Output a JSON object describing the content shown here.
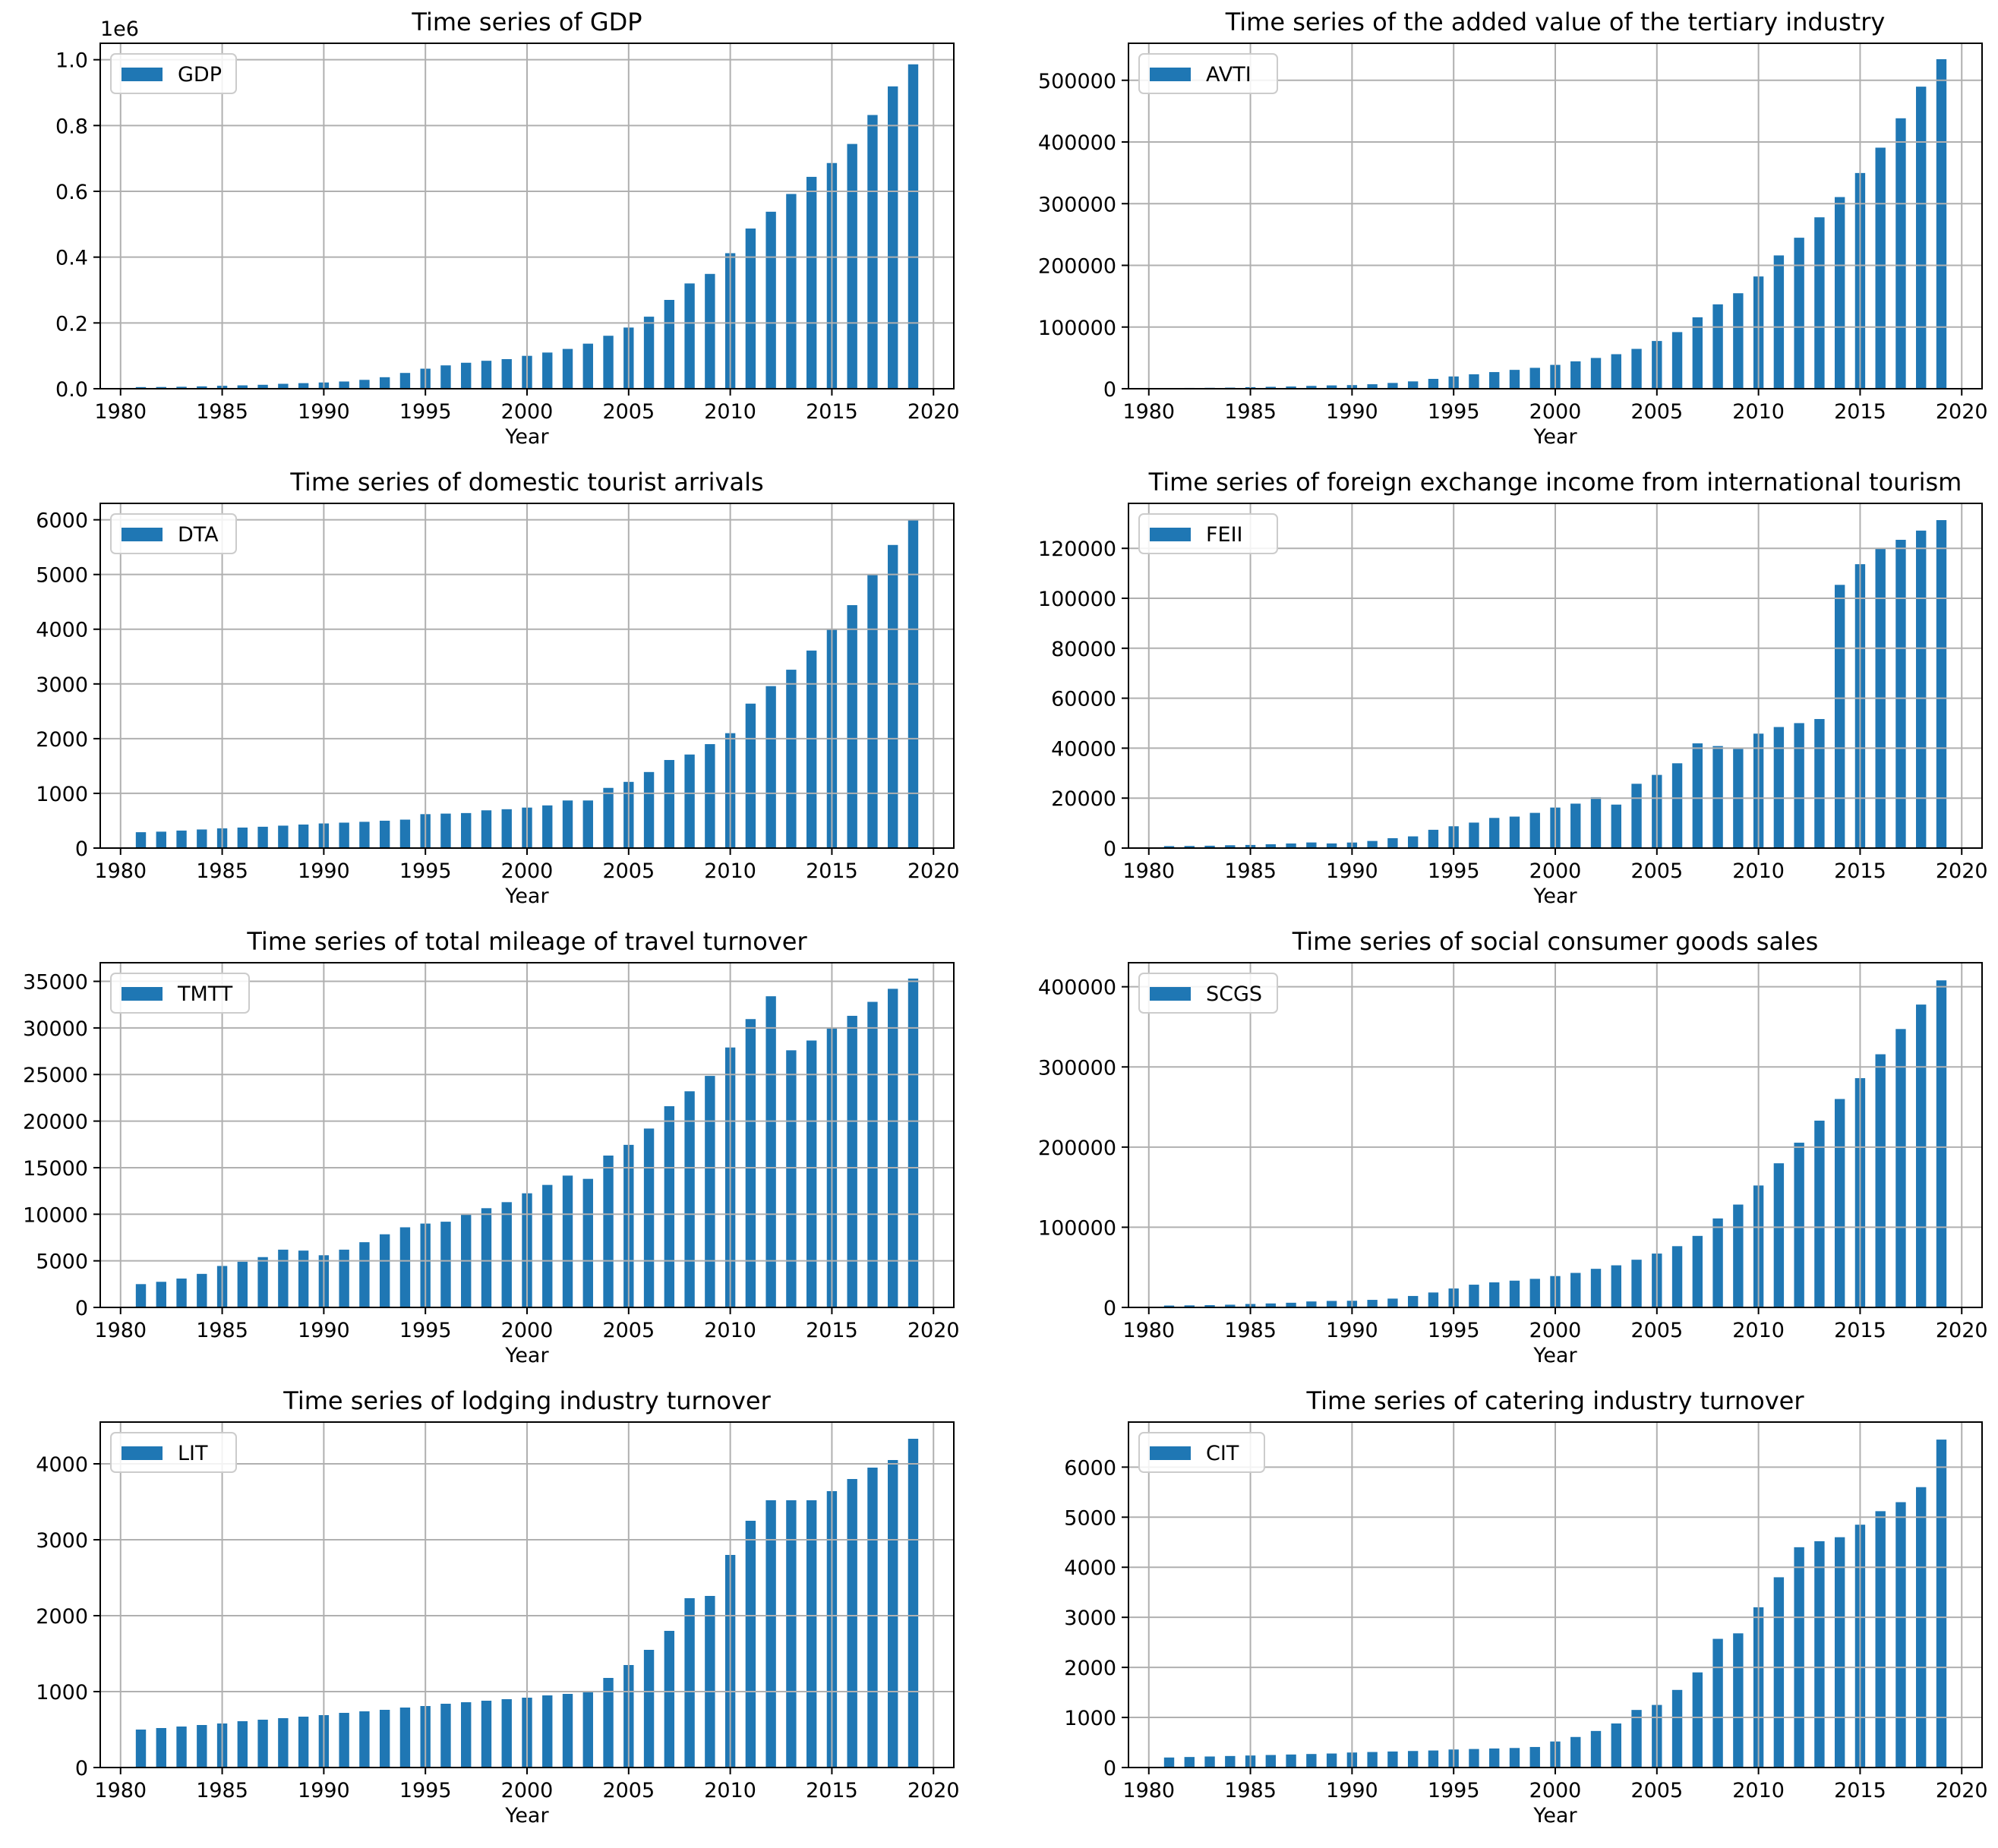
{
  "chart_data": [
    {
      "type": "bar",
      "title": "Time series of GDP",
      "xlabel": "Year",
      "ylabel": "",
      "offset_text": "1e6",
      "legend": {
        "label": "GDP",
        "loc": "upper-left"
      },
      "color": "#1f77b4",
      "grid": true,
      "xlim": [
        1979,
        2021
      ],
      "xticks": [
        1980,
        1985,
        1990,
        1995,
        2000,
        2005,
        2010,
        2015,
        2020
      ],
      "ylim": [
        0,
        1.05
      ],
      "yticks": [
        0.0,
        0.2,
        0.4,
        0.6,
        0.8,
        1.0
      ],
      "ytick_labels": [
        "0.0",
        "0.2",
        "0.4",
        "0.6",
        "0.8",
        "1.0"
      ],
      "x": [
        1981,
        1982,
        1983,
        1984,
        1985,
        1986,
        1987,
        1988,
        1989,
        1990,
        1991,
        1992,
        1993,
        1994,
        1995,
        1996,
        1997,
        1998,
        1999,
        2000,
        2001,
        2002,
        2003,
        2004,
        2005,
        2006,
        2007,
        2008,
        2009,
        2010,
        2011,
        2012,
        2013,
        2014,
        2015,
        2016,
        2017,
        2018,
        2019
      ],
      "values": [
        0.005,
        0.0053,
        0.006,
        0.0072,
        0.009,
        0.0103,
        0.012,
        0.015,
        0.017,
        0.019,
        0.022,
        0.027,
        0.035,
        0.048,
        0.061,
        0.071,
        0.079,
        0.085,
        0.09,
        0.1,
        0.11,
        0.121,
        0.137,
        0.161,
        0.186,
        0.219,
        0.27,
        0.32,
        0.349,
        0.412,
        0.487,
        0.538,
        0.592,
        0.644,
        0.686,
        0.744,
        0.832,
        0.919,
        0.986
      ]
    },
    {
      "type": "bar",
      "title": "Time series of the added value of the tertiary industry",
      "xlabel": "Year",
      "ylabel": "",
      "legend": {
        "label": "AVTI",
        "loc": "upper-left"
      },
      "color": "#1f77b4",
      "grid": true,
      "xlim": [
        1979,
        2021
      ],
      "xticks": [
        1980,
        1985,
        1990,
        1995,
        2000,
        2005,
        2010,
        2015,
        2020
      ],
      "ylim": [
        0,
        560000
      ],
      "yticks": [
        0,
        100000,
        200000,
        300000,
        400000,
        500000
      ],
      "ytick_labels": [
        "0",
        "100000",
        "200000",
        "300000",
        "400000",
        "500000"
      ],
      "x": [
        1981,
        1982,
        1983,
        1984,
        1985,
        1986,
        1987,
        1988,
        1989,
        1990,
        1991,
        1992,
        1993,
        1994,
        1995,
        1996,
        1997,
        1998,
        1999,
        2000,
        2001,
        2002,
        2003,
        2004,
        2005,
        2006,
        2007,
        2008,
        2009,
        2010,
        2011,
        2012,
        2013,
        2014,
        2015,
        2016,
        2017,
        2018,
        2019
      ],
      "values": [
        1100,
        1300,
        1500,
        1800,
        2600,
        3100,
        3600,
        4600,
        5400,
        5900,
        7300,
        9400,
        11900,
        16000,
        19900,
        23400,
        27000,
        30600,
        33900,
        38700,
        44400,
        49900,
        56000,
        64600,
        77400,
        91800,
        115800,
        136800,
        154800,
        182000,
        216100,
        244800,
        277900,
        310700,
        349700,
        390800,
        438400,
        489700,
        534200
      ]
    },
    {
      "type": "bar",
      "title": "Time series of domestic tourist arrivals",
      "xlabel": "Year",
      "ylabel": "",
      "legend": {
        "label": "DTA",
        "loc": "upper-left"
      },
      "color": "#1f77b4",
      "grid": true,
      "xlim": [
        1979,
        2021
      ],
      "xticks": [
        1980,
        1985,
        1990,
        1995,
        2000,
        2005,
        2010,
        2015,
        2020
      ],
      "ylim": [
        0,
        6300
      ],
      "yticks": [
        0,
        1000,
        2000,
        3000,
        4000,
        5000,
        6000
      ],
      "ytick_labels": [
        "0",
        "1000",
        "2000",
        "3000",
        "4000",
        "5000",
        "6000"
      ],
      "x": [
        1981,
        1982,
        1983,
        1984,
        1985,
        1986,
        1987,
        1988,
        1989,
        1990,
        1991,
        1992,
        1993,
        1994,
        1995,
        1996,
        1997,
        1998,
        1999,
        2000,
        2001,
        2002,
        2003,
        2004,
        2005,
        2006,
        2007,
        2008,
        2009,
        2010,
        2011,
        2012,
        2013,
        2014,
        2015,
        2016,
        2017,
        2018,
        2019
      ],
      "values": [
        290,
        300,
        320,
        340,
        360,
        375,
        390,
        410,
        430,
        450,
        465,
        480,
        500,
        520,
        620,
        630,
        640,
        690,
        710,
        740,
        780,
        870,
        870,
        1100,
        1210,
        1390,
        1610,
        1710,
        1900,
        2100,
        2640,
        2960,
        3260,
        3610,
        4000,
        4440,
        5000,
        5540,
        6000
      ]
    },
    {
      "type": "bar",
      "title": "Time series of foreign exchange income from international tourism",
      "xlabel": "Year",
      "ylabel": "",
      "legend": {
        "label": "FEII",
        "loc": "upper-left"
      },
      "color": "#1f77b4",
      "grid": true,
      "xlim": [
        1979,
        2021
      ],
      "xticks": [
        1980,
        1985,
        1990,
        1995,
        2000,
        2005,
        2010,
        2015,
        2020
      ],
      "ylim": [
        0,
        138000
      ],
      "yticks": [
        0,
        20000,
        40000,
        60000,
        80000,
        100000,
        120000
      ],
      "ytick_labels": [
        "0",
        "20000",
        "40000",
        "60000",
        "80000",
        "100000",
        "120000"
      ],
      "x": [
        1981,
        1982,
        1983,
        1984,
        1985,
        1986,
        1987,
        1988,
        1989,
        1990,
        1991,
        1992,
        1993,
        1994,
        1995,
        1996,
        1997,
        1998,
        1999,
        2000,
        2001,
        2002,
        2003,
        2004,
        2005,
        2006,
        2007,
        2008,
        2009,
        2010,
        2011,
        2012,
        2013,
        2014,
        2015,
        2016,
        2017,
        2018,
        2019
      ],
      "values": [
        785,
        843,
        941,
        1131,
        1250,
        1531,
        1845,
        2247,
        1860,
        2218,
        2845,
        3948,
        4683,
        7323,
        8733,
        10200,
        12074,
        12602,
        14099,
        16224,
        17792,
        20385,
        17406,
        25739,
        29296,
        33949,
        41919,
        40843,
        39675,
        45814,
        48464,
        50028,
        51664,
        105380,
        113650,
        120000,
        123417,
        127103,
        131300
      ]
    },
    {
      "type": "bar",
      "title": "Time series of total mileage of travel turnover",
      "xlabel": "Year",
      "ylabel": "",
      "legend": {
        "label": "TMTT",
        "loc": "upper-left"
      },
      "color": "#1f77b4",
      "grid": true,
      "xlim": [
        1979,
        2021
      ],
      "xticks": [
        1980,
        1985,
        1990,
        1995,
        2000,
        2005,
        2010,
        2015,
        2020
      ],
      "ylim": [
        0,
        37000
      ],
      "yticks": [
        0,
        5000,
        10000,
        15000,
        20000,
        25000,
        30000,
        35000
      ],
      "ytick_labels": [
        "0",
        "5000",
        "10000",
        "15000",
        "20000",
        "25000",
        "30000",
        "35000"
      ],
      "x": [
        1981,
        1982,
        1983,
        1984,
        1985,
        1986,
        1987,
        1988,
        1989,
        1990,
        1991,
        1992,
        1993,
        1994,
        1995,
        1996,
        1997,
        1998,
        1999,
        2000,
        2001,
        2002,
        2003,
        2004,
        2005,
        2006,
        2007,
        2008,
        2009,
        2010,
        2011,
        2012,
        2013,
        2014,
        2015,
        2016,
        2017,
        2018,
        2019
      ],
      "values": [
        2500,
        2750,
        3100,
        3600,
        4450,
        4900,
        5400,
        6200,
        6100,
        5600,
        6200,
        7000,
        7850,
        8600,
        9000,
        9200,
        10000,
        10650,
        11300,
        12250,
        13150,
        14150,
        13800,
        16300,
        17450,
        19200,
        21600,
        23200,
        24850,
        27900,
        30950,
        33400,
        27600,
        28650,
        30000,
        31300,
        32800,
        34200,
        35300
      ]
    },
    {
      "type": "bar",
      "title": "Time series of social consumer goods sales",
      "xlabel": "Year",
      "ylabel": "",
      "legend": {
        "label": "SCGS",
        "loc": "upper-left"
      },
      "color": "#1f77b4",
      "grid": true,
      "xlim": [
        1979,
        2021
      ],
      "xticks": [
        1980,
        1985,
        1990,
        1995,
        2000,
        2005,
        2010,
        2015,
        2020
      ],
      "ylim": [
        0,
        430000
      ],
      "yticks": [
        0,
        100000,
        200000,
        300000,
        400000
      ],
      "ytick_labels": [
        "0",
        "100000",
        "200000",
        "300000",
        "400000"
      ],
      "x": [
        1981,
        1982,
        1983,
        1984,
        1985,
        1986,
        1987,
        1988,
        1989,
        1990,
        1991,
        1992,
        1993,
        1994,
        1995,
        1996,
        1997,
        1998,
        1999,
        2000,
        2001,
        2002,
        2003,
        2004,
        2005,
        2006,
        2007,
        2008,
        2009,
        2010,
        2011,
        2012,
        2013,
        2014,
        2015,
        2016,
        2017,
        2018,
        2019
      ],
      "values": [
        2350,
        2570,
        2850,
        3380,
        4300,
        4950,
        5820,
        7440,
        8100,
        8300,
        9420,
        10990,
        14270,
        18620,
        23610,
        28360,
        31250,
        33380,
        35650,
        39110,
        43060,
        48140,
        52520,
        59500,
        67180,
        76410,
        89210,
        111000,
        128300,
        152100,
        179800,
        205500,
        233000,
        260000,
        286000,
        315800,
        347300,
        377800,
        408000
      ]
    },
    {
      "type": "bar",
      "title": "Time series of lodging industry turnover",
      "xlabel": "Year",
      "ylabel": "",
      "legend": {
        "label": "LIT",
        "loc": "upper-left"
      },
      "color": "#1f77b4",
      "grid": true,
      "xlim": [
        1979,
        2021
      ],
      "xticks": [
        1980,
        1985,
        1990,
        1995,
        2000,
        2005,
        2010,
        2015,
        2020
      ],
      "ylim": [
        0,
        4550
      ],
      "yticks": [
        0,
        1000,
        2000,
        3000,
        4000
      ],
      "ytick_labels": [
        "0",
        "1000",
        "2000",
        "3000",
        "4000"
      ],
      "x": [
        1981,
        1982,
        1983,
        1984,
        1985,
        1986,
        1987,
        1988,
        1989,
        1990,
        1991,
        1992,
        1993,
        1994,
        1995,
        1996,
        1997,
        1998,
        1999,
        2000,
        2001,
        2002,
        2003,
        2004,
        2005,
        2006,
        2007,
        2008,
        2009,
        2010,
        2011,
        2012,
        2013,
        2014,
        2015,
        2016,
        2017,
        2018,
        2019
      ],
      "values": [
        500,
        520,
        540,
        560,
        580,
        610,
        630,
        650,
        670,
        690,
        720,
        740,
        760,
        790,
        810,
        840,
        860,
        880,
        900,
        920,
        950,
        970,
        990,
        1180,
        1350,
        1550,
        1800,
        2230,
        2260,
        2800,
        3250,
        3520,
        3520,
        3520,
        3640,
        3800,
        3950,
        4050,
        4330
      ]
    },
    {
      "type": "bar",
      "title": "Time series of catering industry turnover",
      "xlabel": "Year",
      "ylabel": "",
      "legend": {
        "label": "CIT",
        "loc": "upper-left"
      },
      "color": "#1f77b4",
      "grid": true,
      "xlim": [
        1979,
        2021
      ],
      "xticks": [
        1980,
        1985,
        1990,
        1995,
        2000,
        2005,
        2010,
        2015,
        2020
      ],
      "ylim": [
        0,
        6900
      ],
      "yticks": [
        0,
        1000,
        2000,
        3000,
        4000,
        5000,
        6000
      ],
      "ytick_labels": [
        "0",
        "1000",
        "2000",
        "3000",
        "4000",
        "5000",
        "6000"
      ],
      "x": [
        1981,
        1982,
        1983,
        1984,
        1985,
        1986,
        1987,
        1988,
        1989,
        1990,
        1991,
        1992,
        1993,
        1994,
        1995,
        1996,
        1997,
        1998,
        1999,
        2000,
        2001,
        2002,
        2003,
        2004,
        2005,
        2006,
        2007,
        2008,
        2009,
        2010,
        2011,
        2012,
        2013,
        2014,
        2015,
        2016,
        2017,
        2018,
        2019
      ],
      "values": [
        200,
        210,
        220,
        230,
        240,
        250,
        260,
        270,
        280,
        300,
        310,
        320,
        330,
        340,
        360,
        370,
        380,
        390,
        410,
        520,
        610,
        730,
        880,
        1150,
        1250,
        1550,
        1900,
        2570,
        2680,
        3200,
        3800,
        4400,
        4520,
        4600,
        4850,
        5120,
        5300,
        5600,
        6550
      ]
    }
  ]
}
